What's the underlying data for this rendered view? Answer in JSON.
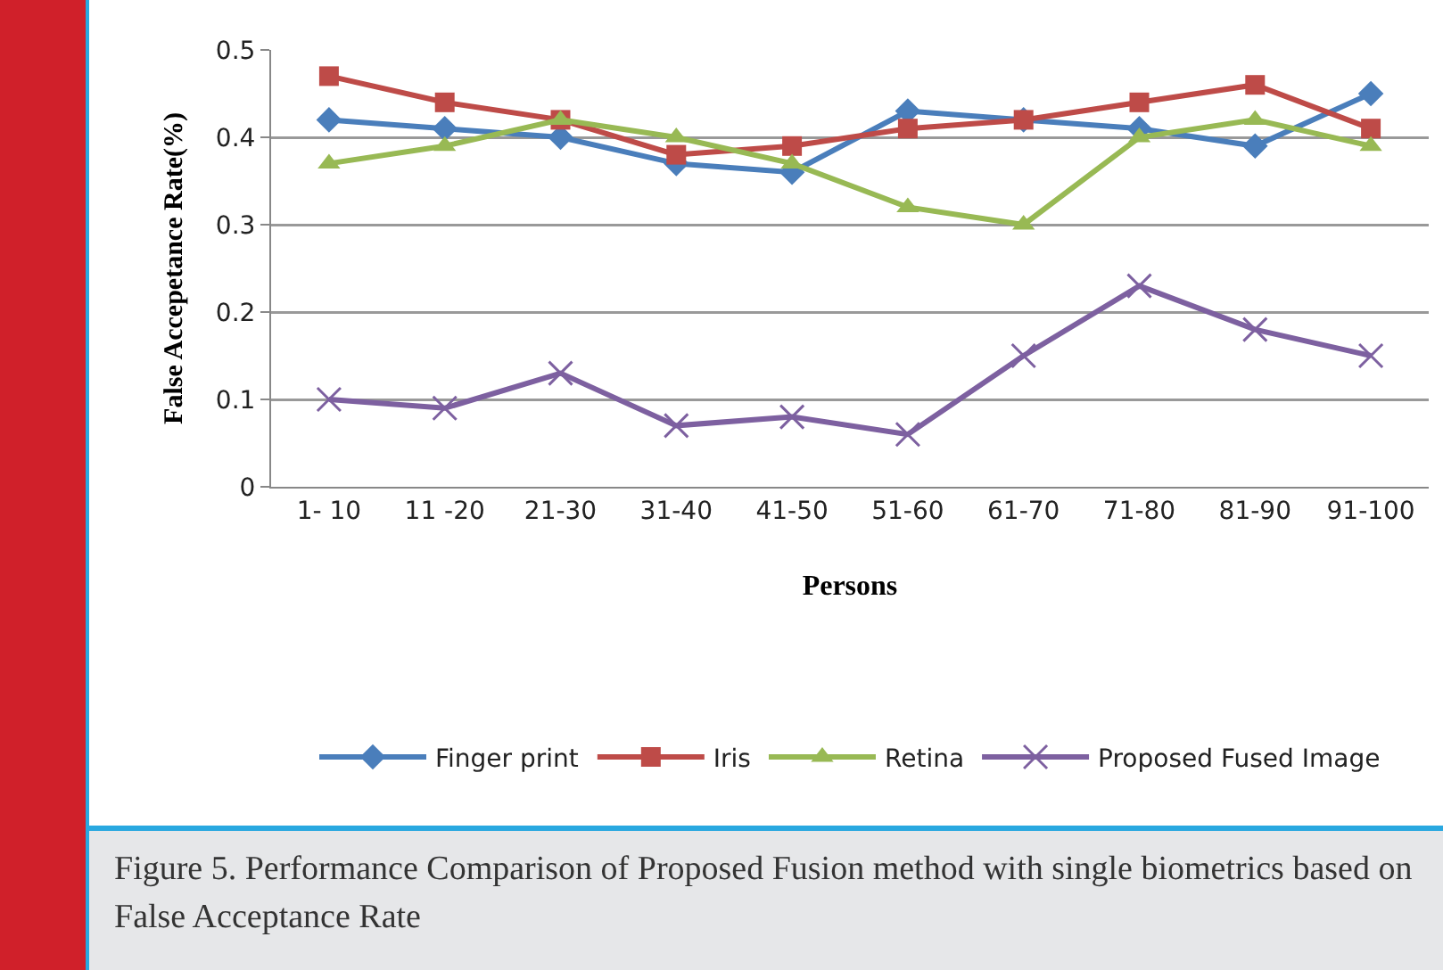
{
  "chart_data": {
    "type": "line",
    "xlabel": "Persons",
    "ylabel": "False Accepetance Rate(%)",
    "categories": [
      "1- 10",
      "11 -20",
      "21-30",
      "31-40",
      "41-50",
      "51-60",
      "61-70",
      "71-80",
      "81-90",
      "91-100"
    ],
    "series": [
      {
        "name": "Finger print",
        "color": "#4a7ebb",
        "marker": "diamond",
        "values": [
          0.42,
          0.41,
          0.4,
          0.37,
          0.36,
          0.43,
          0.42,
          0.41,
          0.39,
          0.45
        ]
      },
      {
        "name": "Iris",
        "color": "#be4b48",
        "marker": "square",
        "values": [
          0.47,
          0.44,
          0.42,
          0.38,
          0.39,
          0.41,
          0.42,
          0.44,
          0.46,
          0.41
        ]
      },
      {
        "name": "Retina",
        "color": "#98b954",
        "marker": "triangle",
        "values": [
          0.37,
          0.39,
          0.42,
          0.4,
          0.37,
          0.32,
          0.3,
          0.4,
          0.42,
          0.39
        ]
      },
      {
        "name": "Proposed Fused Image",
        "color": "#7d60a0",
        "marker": "cross",
        "values": [
          0.1,
          0.09,
          0.13,
          0.07,
          0.08,
          0.06,
          0.15,
          0.23,
          0.18,
          0.15
        ]
      }
    ],
    "ylim": [
      0,
      0.5
    ],
    "yticks": [
      0,
      0.1,
      0.2,
      0.3,
      0.4,
      0.5
    ],
    "grid": "y",
    "legend": "bottom",
    "annotations": [
      "Figure 5. Performance Comparison of Proposed Fusion method with single biometrics based on False Acceptance Rate"
    ]
  }
}
